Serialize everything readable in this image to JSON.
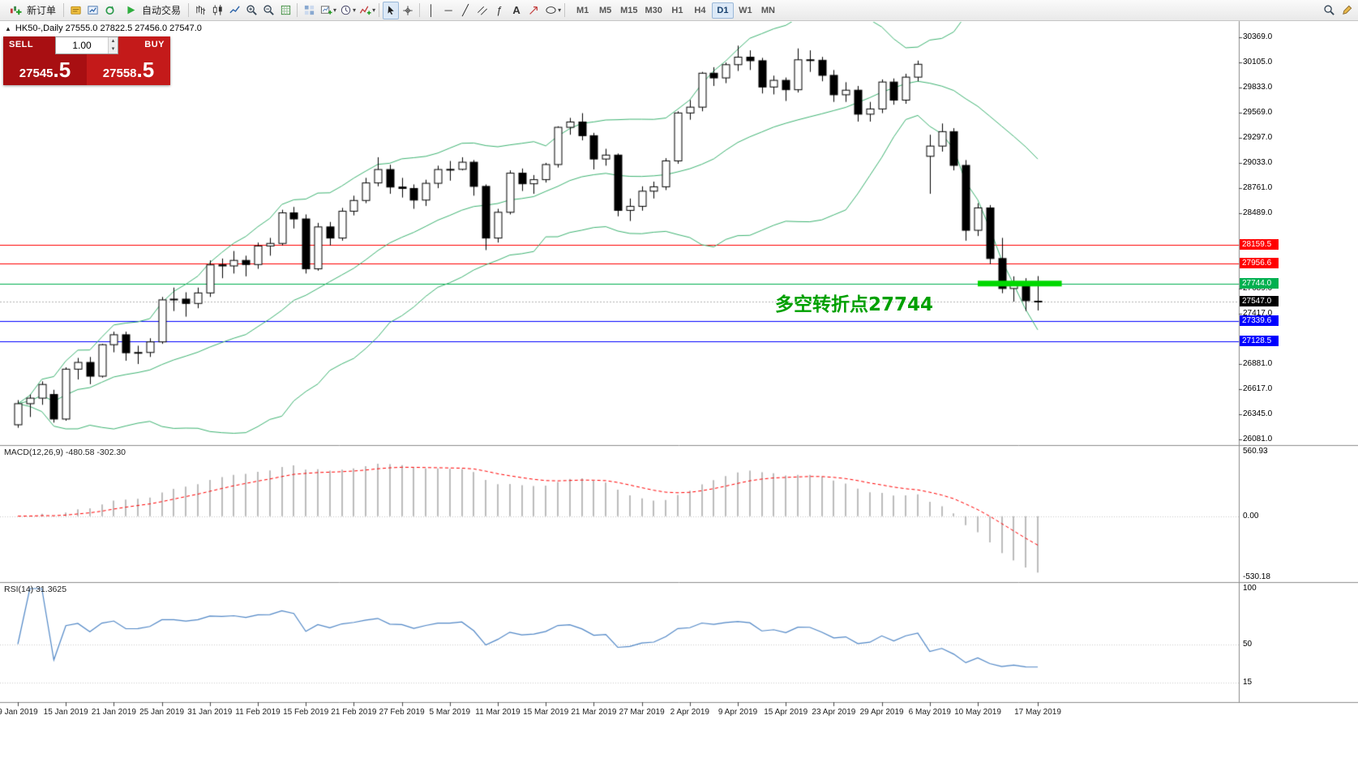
{
  "toolbar": {
    "new_order_label": "新订单",
    "auto_trading_label": "自动交易",
    "timeframes": [
      "M1",
      "M5",
      "M15",
      "M30",
      "H1",
      "H4",
      "D1",
      "W1",
      "MN"
    ],
    "active_timeframe": "D1"
  },
  "symbol_bar": {
    "text": "HK50-,Daily 27555.0 27822.5 27456.0 27547.0"
  },
  "trade_panel": {
    "sell_label": "SELL",
    "buy_label": "BUY",
    "volume": "1.00",
    "sell_price_main": "27545",
    "sell_price_pips": ".5",
    "buy_price_main": "27558",
    "buy_price_pips": ".5"
  },
  "annotation": {
    "text": "多空转折点27744",
    "color": "#00a000"
  },
  "macd_panel": {
    "label": "MACD(12,26,9) -480.58 -302.30",
    "scale_labels": [
      "560.93",
      "0.00",
      "-530.18"
    ]
  },
  "rsi_panel": {
    "label": "RSI(14) 31.3625",
    "scale_labels": [
      "100",
      "50",
      "15"
    ]
  },
  "chart_data": {
    "type": "candlestick",
    "symbol": "HK50",
    "timeframe": "Daily",
    "y_range": [
      26081.0,
      30369.0
    ],
    "y_ticks": [
      "30369.0",
      "30105.0",
      "29833.0",
      "29569.0",
      "29297.0",
      "29033.0",
      "28761.0",
      "28489.0",
      "27689.0",
      "27417.0",
      "26881.0",
      "26617.0",
      "26345.0",
      "26081.0"
    ],
    "levels": [
      {
        "price": 28159.5,
        "color": "#ff0000",
        "label": "28159.5"
      },
      {
        "price": 27956.6,
        "color": "#ff0000",
        "label": "27956.6"
      },
      {
        "price": 27744.0,
        "color": "#00b050",
        "label": "27744.0"
      },
      {
        "price": 27339.6,
        "color": "#0000ff",
        "label": "27339.6"
      },
      {
        "price": 27128.5,
        "color": "#0000ff",
        "label": "27128.5"
      }
    ],
    "current_price": {
      "open": 27555.0,
      "high": 27822.5,
      "low": 27456.0,
      "close": 27547.0,
      "label": "27547.0"
    },
    "highlight": {
      "price": 27744.0,
      "i_from": 80,
      "i_to": 87,
      "color": "#00d800"
    },
    "bollinger": {
      "period": 20,
      "deviation": 2,
      "color": "#3cb371"
    },
    "macd": {
      "fast": 12,
      "slow": 26,
      "signal": 9,
      "scale": [
        560.93,
        0,
        -530.18
      ],
      "hist_color": "#bbbbbb",
      "signal_color": "#ff0000",
      "values": [
        -480.58,
        -302.3
      ]
    },
    "rsi": {
      "period": 14,
      "value": 31.3625,
      "levels": [
        100,
        50,
        15
      ],
      "color": "#4f86c6"
    },
    "x_labels": [
      {
        "i": 0,
        "label": "9 Jan 2019"
      },
      {
        "i": 4,
        "label": "15 Jan 2019"
      },
      {
        "i": 8,
        "label": "21 Jan 2019"
      },
      {
        "i": 12,
        "label": "25 Jan 2019"
      },
      {
        "i": 16,
        "label": "31 Jan 2019"
      },
      {
        "i": 20,
        "label": "11 Feb 2019"
      },
      {
        "i": 24,
        "label": "15 Feb 2019"
      },
      {
        "i": 28,
        "label": "21 Feb 2019"
      },
      {
        "i": 32,
        "label": "27 Feb 2019"
      },
      {
        "i": 36,
        "label": "5 Mar 2019"
      },
      {
        "i": 40,
        "label": "11 Mar 2019"
      },
      {
        "i": 44,
        "label": "15 Mar 2019"
      },
      {
        "i": 48,
        "label": "21 Mar 2019"
      },
      {
        "i": 52,
        "label": "27 Mar 2019"
      },
      {
        "i": 56,
        "label": "2 Apr 2019"
      },
      {
        "i": 60,
        "label": "9 Apr 2019"
      },
      {
        "i": 64,
        "label": "15 Apr 2019"
      },
      {
        "i": 68,
        "label": "23 Apr 2019"
      },
      {
        "i": 72,
        "label": "29 Apr 2019"
      },
      {
        "i": 76,
        "label": "6 May 2019"
      },
      {
        "i": 80,
        "label": "10 May 2019"
      },
      {
        "i": 85,
        "label": "17 May 2019"
      }
    ],
    "ohlc": [
      [
        26237,
        26500,
        26205,
        26462
      ],
      [
        26462,
        26560,
        26320,
        26521
      ],
      [
        26521,
        26700,
        26450,
        26667
      ],
      [
        26560,
        26610,
        26260,
        26298
      ],
      [
        26298,
        26850,
        26280,
        26830
      ],
      [
        26830,
        26950,
        26720,
        26902
      ],
      [
        26902,
        26960,
        26670,
        26755
      ],
      [
        26755,
        27100,
        26740,
        27091
      ],
      [
        27091,
        27230,
        27010,
        27197
      ],
      [
        27197,
        27230,
        26920,
        27005
      ],
      [
        27005,
        27080,
        26885,
        27008
      ],
      [
        27008,
        27160,
        26960,
        27121
      ],
      [
        27121,
        27600,
        27100,
        27569
      ],
      [
        27569,
        27700,
        27450,
        27577
      ],
      [
        27577,
        27650,
        27390,
        27531
      ],
      [
        27531,
        27700,
        27480,
        27643
      ],
      [
        27643,
        27990,
        27600,
        27942
      ],
      [
        27942,
        28010,
        27800,
        27931
      ],
      [
        27931,
        28090,
        27850,
        27990
      ],
      [
        27990,
        28040,
        27820,
        27946
      ],
      [
        27946,
        28180,
        27900,
        28144
      ],
      [
        28144,
        28230,
        28040,
        28171
      ],
      [
        28171,
        28530,
        28150,
        28497
      ],
      [
        28497,
        28560,
        28330,
        28432
      ],
      [
        28432,
        28480,
        27850,
        27900
      ],
      [
        27900,
        28390,
        27880,
        28347
      ],
      [
        28347,
        28400,
        28150,
        28228
      ],
      [
        28228,
        28550,
        28200,
        28514
      ],
      [
        28514,
        28680,
        28470,
        28629
      ],
      [
        28629,
        28870,
        28600,
        28816
      ],
      [
        28816,
        29090,
        28780,
        28959
      ],
      [
        28959,
        29010,
        28700,
        28772
      ],
      [
        28772,
        28870,
        28660,
        28757
      ],
      [
        28757,
        28800,
        28540,
        28633
      ],
      [
        28633,
        28850,
        28570,
        28812
      ],
      [
        28812,
        29000,
        28760,
        28959
      ],
      [
        28959,
        29050,
        28840,
        28961
      ],
      [
        28961,
        29090,
        28950,
        29037
      ],
      [
        29037,
        29060,
        28680,
        28779
      ],
      [
        28779,
        28800,
        28100,
        28228
      ],
      [
        28228,
        28540,
        28180,
        28503
      ],
      [
        28503,
        28950,
        28480,
        28920
      ],
      [
        28920,
        28970,
        28730,
        28807
      ],
      [
        28807,
        28900,
        28700,
        28851
      ],
      [
        28851,
        29030,
        28820,
        29012
      ],
      [
        29012,
        29420,
        28980,
        29409
      ],
      [
        29409,
        29510,
        29330,
        29466
      ],
      [
        29466,
        29560,
        29270,
        29320
      ],
      [
        29320,
        29350,
        28960,
        29071
      ],
      [
        29071,
        29180,
        29000,
        29113
      ],
      [
        29113,
        29130,
        28460,
        28523
      ],
      [
        28523,
        28650,
        28410,
        28566
      ],
      [
        28566,
        28780,
        28520,
        28728
      ],
      [
        28728,
        28830,
        28650,
        28775
      ],
      [
        28775,
        29080,
        28740,
        29051
      ],
      [
        29051,
        29580,
        29020,
        29562
      ],
      [
        29562,
        29700,
        29490,
        29624
      ],
      [
        29624,
        30000,
        29580,
        29986
      ],
      [
        29986,
        30050,
        29850,
        29936
      ],
      [
        29936,
        30100,
        29880,
        30077
      ],
      [
        30077,
        30280,
        30010,
        30157
      ],
      [
        30157,
        30230,
        30020,
        30119
      ],
      [
        30119,
        30150,
        29770,
        29839
      ],
      [
        29839,
        29960,
        29760,
        29910
      ],
      [
        29910,
        29940,
        29690,
        29810
      ],
      [
        29810,
        30250,
        29780,
        30129
      ],
      [
        30129,
        30230,
        30000,
        30124
      ],
      [
        30124,
        30160,
        29900,
        29963
      ],
      [
        29963,
        30020,
        29680,
        29756
      ],
      [
        29756,
        29890,
        29680,
        29805
      ],
      [
        29805,
        29850,
        29470,
        29549
      ],
      [
        29549,
        29680,
        29470,
        29605
      ],
      [
        29605,
        29920,
        29560,
        29892
      ],
      [
        29892,
        29930,
        29650,
        29699
      ],
      [
        29699,
        29980,
        29660,
        29944
      ],
      [
        29944,
        30120,
        29900,
        30081
      ],
      [
        29100,
        29330,
        28700,
        29209
      ],
      [
        29209,
        29450,
        29150,
        29363
      ],
      [
        29363,
        29400,
        28950,
        29003
      ],
      [
        29003,
        29060,
        28200,
        28311
      ],
      [
        28311,
        28600,
        28250,
        28550
      ],
      [
        28550,
        28580,
        27950,
        28010
      ],
      [
        28010,
        28230,
        27640,
        27690
      ],
      [
        27690,
        27820,
        27550,
        27760
      ],
      [
        27760,
        27800,
        27450,
        27560
      ],
      [
        27555,
        27822.5,
        27456,
        27547
      ]
    ]
  }
}
